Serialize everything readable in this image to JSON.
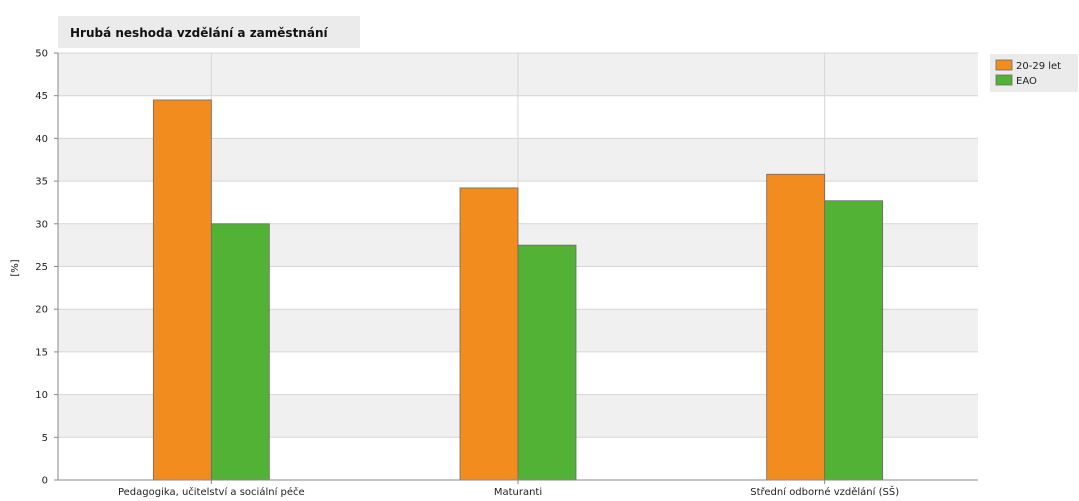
{
  "chart_data": {
    "type": "bar",
    "title": "Hrubá neshoda vzdělání a zaměstnání",
    "ylabel": "[%]",
    "xlabel": "",
    "ylim": [
      0,
      50
    ],
    "yticks": [
      0,
      5,
      10,
      15,
      20,
      25,
      30,
      35,
      40,
      45,
      50
    ],
    "categories": [
      "Pedagogika, učitelství a sociální péče",
      "Maturanti",
      "Střední odborné vzdělání (SŠ)"
    ],
    "series": [
      {
        "name": "20-29 let",
        "color": "#f28c1e",
        "values": [
          44.5,
          34.2,
          35.8
        ]
      },
      {
        "name": "EAO",
        "color": "#52b236",
        "values": [
          30.0,
          27.5,
          32.7
        ]
      }
    ],
    "grid": true,
    "legend": "top-right"
  }
}
